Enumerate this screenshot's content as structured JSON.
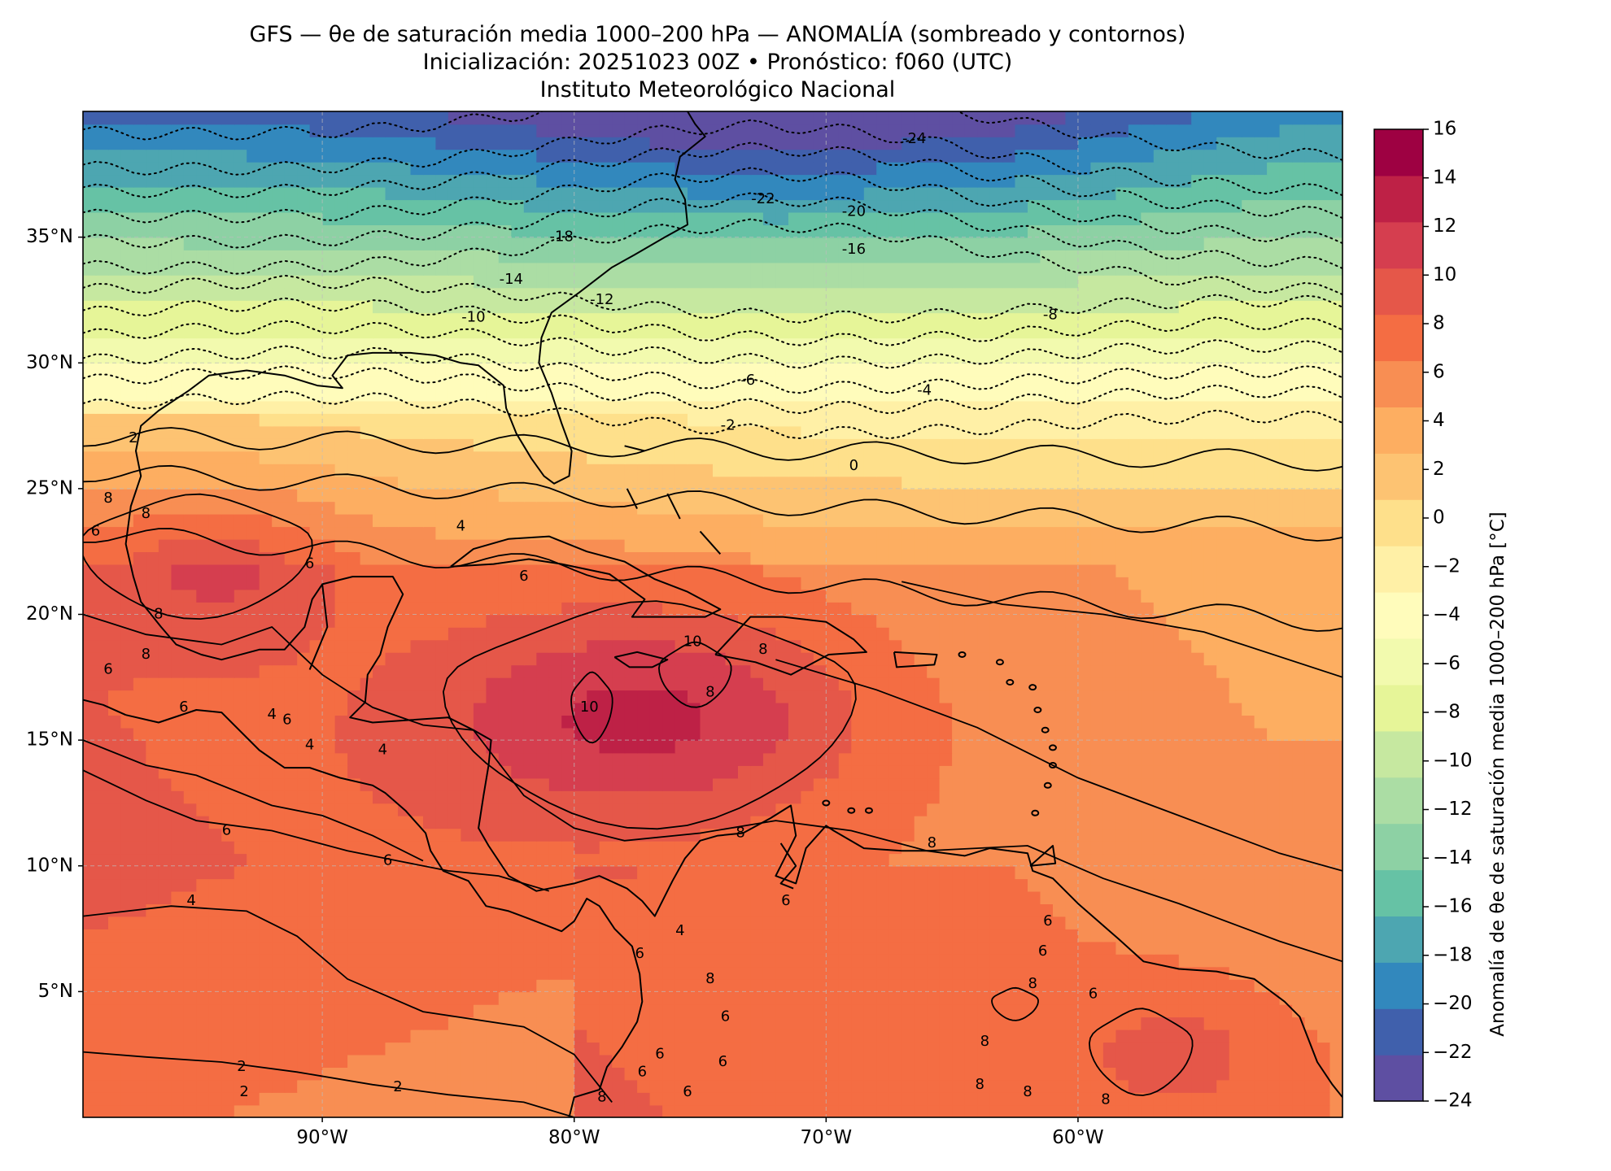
{
  "title": {
    "line1": "GFS — θe de saturación media 1000–200 hPa — ANOMALÍA (sombreado y contornos)",
    "line2": "Inicialización: 20251023 00Z   •   Pronóstico: f060 (UTC)",
    "line3": "Instituto Meteorológico Nacional"
  },
  "map": {
    "lon_range": [
      -99.5,
      -49.5
    ],
    "lat_range": [
      0,
      40
    ],
    "lat_ticks": [
      {
        "value": 35,
        "label": "35°N"
      },
      {
        "value": 30,
        "label": "30°N"
      },
      {
        "value": 25,
        "label": "25°N"
      },
      {
        "value": 20,
        "label": "20°N"
      },
      {
        "value": 15,
        "label": "15°N"
      },
      {
        "value": 10,
        "label": "10°N"
      },
      {
        "value": 5,
        "label": "5°N"
      }
    ],
    "lon_ticks": [
      {
        "value": -90,
        "label": "90°W"
      },
      {
        "value": -80,
        "label": "80°W"
      },
      {
        "value": -70,
        "label": "70°W"
      },
      {
        "value": -60,
        "label": "60°W"
      }
    ],
    "gridlines": true,
    "contour_labels": [
      {
        "text": "-24",
        "lon": -66.5,
        "lat": 38.9
      },
      {
        "text": "-22",
        "lon": -72.5,
        "lat": 36.5
      },
      {
        "text": "-20",
        "lon": -68.9,
        "lat": 36.0
      },
      {
        "text": "-18",
        "lon": -80.5,
        "lat": 35.0
      },
      {
        "text": "-16",
        "lon": -68.9,
        "lat": 34.5
      },
      {
        "text": "-14",
        "lon": -82.5,
        "lat": 33.3
      },
      {
        "text": "-12",
        "lon": -78.9,
        "lat": 32.5
      },
      {
        "text": "-10",
        "lon": -84.0,
        "lat": 31.8
      },
      {
        "text": "-8",
        "lon": -61.1,
        "lat": 31.9
      },
      {
        "text": "-6",
        "lon": -73.1,
        "lat": 29.3
      },
      {
        "text": "-4",
        "lon": -66.1,
        "lat": 28.9
      },
      {
        "text": "-2",
        "lon": -73.9,
        "lat": 27.5
      },
      {
        "text": "0",
        "lon": -68.9,
        "lat": 25.9
      },
      {
        "text": "2",
        "lon": -97.5,
        "lat": 27.0
      },
      {
        "text": "4",
        "lon": -84.5,
        "lat": 23.5
      },
      {
        "text": "6",
        "lon": -82.0,
        "lat": 21.5
      },
      {
        "text": "6",
        "lon": -90.5,
        "lat": 22.0
      },
      {
        "text": "8",
        "lon": -98.5,
        "lat": 24.6
      },
      {
        "text": "8",
        "lon": -97.0,
        "lat": 24.0
      },
      {
        "text": "6",
        "lon": -99.0,
        "lat": 23.3
      },
      {
        "text": "8",
        "lon": -96.5,
        "lat": 20.0
      },
      {
        "text": "8",
        "lon": -97.0,
        "lat": 18.4
      },
      {
        "text": "6",
        "lon": -98.5,
        "lat": 17.8
      },
      {
        "text": "6",
        "lon": -95.5,
        "lat": 16.3
      },
      {
        "text": "4",
        "lon": -92.0,
        "lat": 16.0
      },
      {
        "text": "6",
        "lon": -91.4,
        "lat": 15.8
      },
      {
        "text": "4",
        "lon": -90.5,
        "lat": 14.8
      },
      {
        "text": "4",
        "lon": -87.6,
        "lat": 14.6
      },
      {
        "text": "10",
        "lon": -75.3,
        "lat": 18.9
      },
      {
        "text": "10",
        "lon": -79.4,
        "lat": 16.3
      },
      {
        "text": "8",
        "lon": -74.6,
        "lat": 16.9
      },
      {
        "text": "8",
        "lon": -72.5,
        "lat": 18.6
      },
      {
        "text": "6",
        "lon": -93.8,
        "lat": 11.4
      },
      {
        "text": "6",
        "lon": -87.4,
        "lat": 10.2
      },
      {
        "text": "8",
        "lon": -73.4,
        "lat": 11.3
      },
      {
        "text": "8",
        "lon": -65.8,
        "lat": 10.9
      },
      {
        "text": "4",
        "lon": -95.2,
        "lat": 8.6
      },
      {
        "text": "6",
        "lon": -71.6,
        "lat": 8.6
      },
      {
        "text": "6",
        "lon": -61.2,
        "lat": 7.8
      },
      {
        "text": "6",
        "lon": -61.4,
        "lat": 6.6
      },
      {
        "text": "8",
        "lon": -61.8,
        "lat": 5.3
      },
      {
        "text": "6",
        "lon": -59.4,
        "lat": 4.9
      },
      {
        "text": "4",
        "lon": -75.8,
        "lat": 7.4
      },
      {
        "text": "6",
        "lon": -77.4,
        "lat": 6.5
      },
      {
        "text": "8",
        "lon": -74.6,
        "lat": 5.5
      },
      {
        "text": "6",
        "lon": -74.0,
        "lat": 4.0
      },
      {
        "text": "6",
        "lon": -74.1,
        "lat": 2.2
      },
      {
        "text": "6",
        "lon": -76.6,
        "lat": 2.5
      },
      {
        "text": "6",
        "lon": -75.5,
        "lat": 1.0
      },
      {
        "text": "6",
        "lon": -77.3,
        "lat": 1.8
      },
      {
        "text": "8",
        "lon": -63.7,
        "lat": 3.0
      },
      {
        "text": "8",
        "lon": -63.9,
        "lat": 1.3
      },
      {
        "text": "8",
        "lon": -62.0,
        "lat": 1.0
      },
      {
        "text": "8",
        "lon": -58.9,
        "lat": 0.7
      },
      {
        "text": "8",
        "lon": -78.9,
        "lat": 0.8
      },
      {
        "text": "2",
        "lon": -93.2,
        "lat": 2.0
      },
      {
        "text": "2",
        "lon": -93.1,
        "lat": 1.0
      },
      {
        "text": "2",
        "lon": -87.0,
        "lat": 1.2
      }
    ]
  },
  "colorbar": {
    "label": "Anomalía de θe de saturación media 1000–200 hPa [°C]",
    "range": [
      -24,
      16
    ],
    "ticks": [
      "16",
      "14",
      "12",
      "10",
      "8",
      "6",
      "4",
      "2",
      "0",
      "−2",
      "−4",
      "−6",
      "−8",
      "−10",
      "−12",
      "−14",
      "−16",
      "−18",
      "−20",
      "−22",
      "−24"
    ],
    "colors": [
      "#5e4fa2",
      "#4060ac",
      "#3288bd",
      "#4da6b1",
      "#66c2a5",
      "#8dd1a4",
      "#abdda4",
      "#c6e8a0",
      "#e6f598",
      "#f2faae",
      "#fffcbb",
      "#fff0a6",
      "#fee08b",
      "#fdc372",
      "#fdae61",
      "#f88e53",
      "#f46d43",
      "#e55749",
      "#d53e4f",
      "#be2146",
      "#9e0142"
    ]
  },
  "colors": {
    "coastline": "#000000",
    "contour": "#000000",
    "gridline": "#bdbdbd"
  }
}
